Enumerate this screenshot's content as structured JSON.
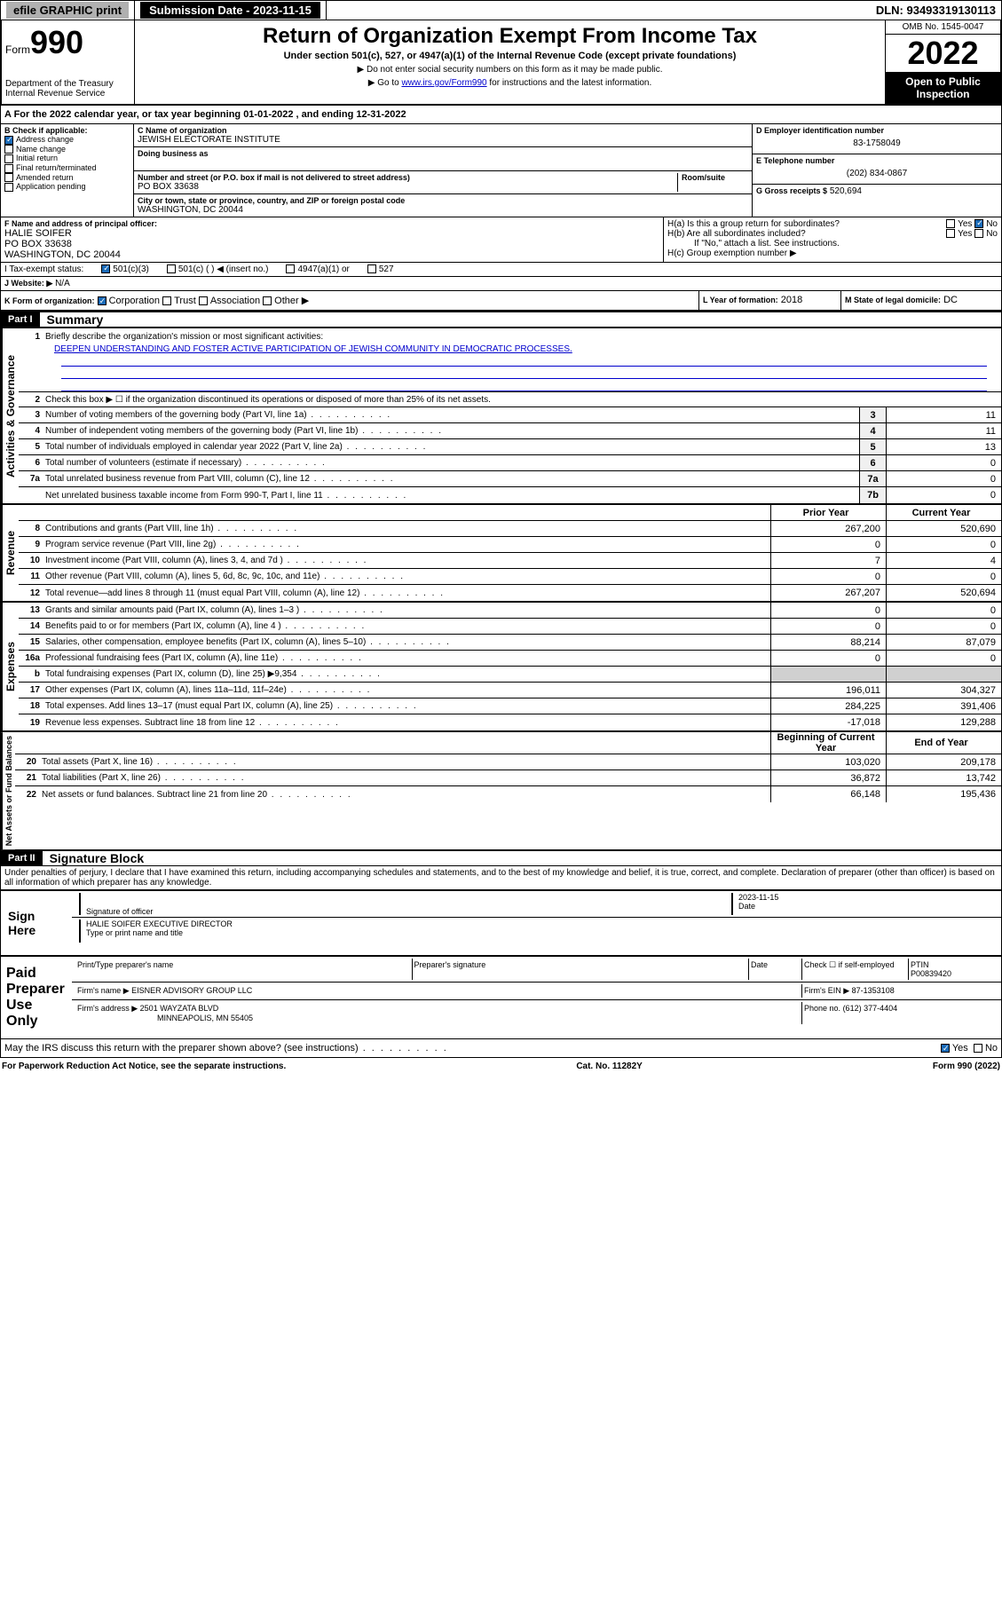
{
  "topbar": {
    "efile": "efile GRAPHIC print",
    "subdate_label": "Submission Date - 2023-11-15",
    "dln": "DLN: 93493319130113"
  },
  "header": {
    "form_word": "Form",
    "form_num": "990",
    "dept": "Department of the Treasury\nInternal Revenue Service",
    "title": "Return of Organization Exempt From Income Tax",
    "subtitle": "Under section 501(c), 527, or 4947(a)(1) of the Internal Revenue Code (except private foundations)",
    "note1": "▶ Do not enter social security numbers on this form as it may be made public.",
    "note2_pre": "▶ Go to ",
    "note2_link": "www.irs.gov/Form990",
    "note2_post": " for instructions and the latest information.",
    "omb": "OMB No. 1545-0047",
    "year": "2022",
    "open": "Open to Public Inspection"
  },
  "A": {
    "text": "A For the 2022 calendar year, or tax year beginning 01-01-2022    , and ending 12-31-2022"
  },
  "B": {
    "label": "B Check if applicable:",
    "items": [
      "Address change",
      "Name change",
      "Initial return",
      "Final return/terminated",
      "Amended return",
      "Application pending"
    ],
    "checked": [
      true,
      false,
      false,
      false,
      false,
      false
    ]
  },
  "C": {
    "name_label": "C Name of organization",
    "name": "JEWISH ELECTORATE INSTITUTE",
    "dba_label": "Doing business as",
    "addr_label": "Number and street (or P.O. box if mail is not delivered to street address)",
    "room_label": "Room/suite",
    "addr": "PO BOX 33638",
    "city_label": "City or town, state or province, country, and ZIP or foreign postal code",
    "city": "WASHINGTON, DC  20044"
  },
  "D": {
    "label": "D Employer identification number",
    "value": "83-1758049"
  },
  "E": {
    "label": "E Telephone number",
    "value": "(202) 834-0867"
  },
  "G": {
    "label": "G Gross receipts $",
    "value": "520,694"
  },
  "F": {
    "label": "F Name and address of principal officer:",
    "name": "HALIE SOIFER",
    "addr": "PO BOX 33638",
    "city": "WASHINGTON, DC  20044"
  },
  "H": {
    "a": "H(a)  Is this a group return for subordinates?",
    "a_yes": "Yes",
    "a_no": "No",
    "b": "H(b)  Are all subordinates included?",
    "b_yes": "Yes",
    "b_no": "No",
    "note": "If \"No,\" attach a list. See instructions.",
    "c": "H(c)  Group exemption number ▶"
  },
  "I": {
    "label": "I    Tax-exempt status:",
    "opts": [
      "501(c)(3)",
      "501(c) (  ) ◀ (insert no.)",
      "4947(a)(1) or",
      "527"
    ]
  },
  "J": {
    "label": "J   Website: ▶",
    "value": "N/A"
  },
  "K": {
    "label": "K Form of organization:",
    "opts": [
      "Corporation",
      "Trust",
      "Association",
      "Other ▶"
    ]
  },
  "L": {
    "label": "L Year of formation:",
    "value": "2018"
  },
  "M": {
    "label": "M State of legal domicile:",
    "value": "DC"
  },
  "part1": {
    "num": "Part I",
    "title": "Summary",
    "q1": "Briefly describe the organization's mission or most significant activities:",
    "mission": "DEEPEN UNDERSTANDING AND FOSTER ACTIVE PARTICIPATION OF JEWISH COMMUNITY IN DEMOCRATIC PROCESSES.",
    "q2": "Check this box ▶ ☐  if the organization discontinued its operations or disposed of more than 25% of its net assets.",
    "lines_gov": [
      {
        "n": "3",
        "t": "Number of voting members of the governing body (Part VI, line 1a)",
        "box": "3",
        "v": "11"
      },
      {
        "n": "4",
        "t": "Number of independent voting members of the governing body (Part VI, line 1b)",
        "box": "4",
        "v": "11"
      },
      {
        "n": "5",
        "t": "Total number of individuals employed in calendar year 2022 (Part V, line 2a)",
        "box": "5",
        "v": "13"
      },
      {
        "n": "6",
        "t": "Total number of volunteers (estimate if necessary)",
        "box": "6",
        "v": "0"
      },
      {
        "n": "7a",
        "t": "Total unrelated business revenue from Part VIII, column (C), line 12",
        "box": "7a",
        "v": "0"
      },
      {
        "n": "",
        "t": "Net unrelated business taxable income from Form 990-T, Part I, line 11",
        "box": "7b",
        "v": "0"
      }
    ],
    "hdr_prior": "Prior Year",
    "hdr_curr": "Current Year",
    "lines_rev": [
      {
        "n": "8",
        "t": "Contributions and grants (Part VIII, line 1h)",
        "p": "267,200",
        "c": "520,690"
      },
      {
        "n": "9",
        "t": "Program service revenue (Part VIII, line 2g)",
        "p": "0",
        "c": "0"
      },
      {
        "n": "10",
        "t": "Investment income (Part VIII, column (A), lines 3, 4, and 7d )",
        "p": "7",
        "c": "4"
      },
      {
        "n": "11",
        "t": "Other revenue (Part VIII, column (A), lines 5, 6d, 8c, 9c, 10c, and 11e)",
        "p": "0",
        "c": "0"
      },
      {
        "n": "12",
        "t": "Total revenue—add lines 8 through 11 (must equal Part VIII, column (A), line 12)",
        "p": "267,207",
        "c": "520,694"
      }
    ],
    "lines_exp": [
      {
        "n": "13",
        "t": "Grants and similar amounts paid (Part IX, column (A), lines 1–3 )",
        "p": "0",
        "c": "0"
      },
      {
        "n": "14",
        "t": "Benefits paid to or for members (Part IX, column (A), line 4 )",
        "p": "0",
        "c": "0"
      },
      {
        "n": "15",
        "t": "Salaries, other compensation, employee benefits (Part IX, column (A), lines 5–10)",
        "p": "88,214",
        "c": "87,079"
      },
      {
        "n": "16a",
        "t": "Professional fundraising fees (Part IX, column (A), line 11e)",
        "p": "0",
        "c": "0"
      },
      {
        "n": "b",
        "t": "Total fundraising expenses (Part IX, column (D), line 25) ▶9,354",
        "p": "",
        "c": ""
      },
      {
        "n": "17",
        "t": "Other expenses (Part IX, column (A), lines 11a–11d, 11f–24e)",
        "p": "196,011",
        "c": "304,327"
      },
      {
        "n": "18",
        "t": "Total expenses. Add lines 13–17 (must equal Part IX, column (A), line 25)",
        "p": "284,225",
        "c": "391,406"
      },
      {
        "n": "19",
        "t": "Revenue less expenses. Subtract line 18 from line 12",
        "p": "-17,018",
        "c": "129,288"
      }
    ],
    "hdr_beg": "Beginning of Current Year",
    "hdr_end": "End of Year",
    "lines_net": [
      {
        "n": "20",
        "t": "Total assets (Part X, line 16)",
        "p": "103,020",
        "c": "209,178"
      },
      {
        "n": "21",
        "t": "Total liabilities (Part X, line 26)",
        "p": "36,872",
        "c": "13,742"
      },
      {
        "n": "22",
        "t": "Net assets or fund balances. Subtract line 21 from line 20",
        "p": "66,148",
        "c": "195,436"
      }
    ]
  },
  "part2": {
    "num": "Part II",
    "title": "Signature Block",
    "decl": "Under penalties of perjury, I declare that I have examined this return, including accompanying schedules and statements, and to the best of my knowledge and belief, it is true, correct, and complete. Declaration of preparer (other than officer) is based on all information of which preparer has any knowledge."
  },
  "sign": {
    "label": "Sign Here",
    "sig_label": "Signature of officer",
    "date": "2023-11-15",
    "date_label": "Date",
    "name": "HALIE SOIFER  EXECUTIVE DIRECTOR",
    "name_label": "Type or print name and title"
  },
  "prep": {
    "label": "Paid Preparer Use Only",
    "col1": "Print/Type preparer's name",
    "col2": "Preparer's signature",
    "col3": "Date",
    "col4": "Check ☐ if self-employed",
    "ptin_label": "PTIN",
    "ptin": "P00839420",
    "firm_label": "Firm's name    ▶",
    "firm": "EISNER ADVISORY GROUP LLC",
    "ein_label": "Firm's EIN ▶",
    "ein": "87-1353108",
    "addr_label": "Firm's address ▶",
    "addr": "2501 WAYZATA BLVD",
    "city": "MINNEAPOLIS, MN  55405",
    "phone_label": "Phone no.",
    "phone": "(612) 377-4404"
  },
  "discuss": {
    "text": "May the IRS discuss this return with the preparer shown above? (see instructions)",
    "yes": "Yes",
    "no": "No"
  },
  "footer": {
    "left": "For Paperwork Reduction Act Notice, see the separate instructions.",
    "mid": "Cat. No. 11282Y",
    "right": "Form 990 (2022)"
  }
}
